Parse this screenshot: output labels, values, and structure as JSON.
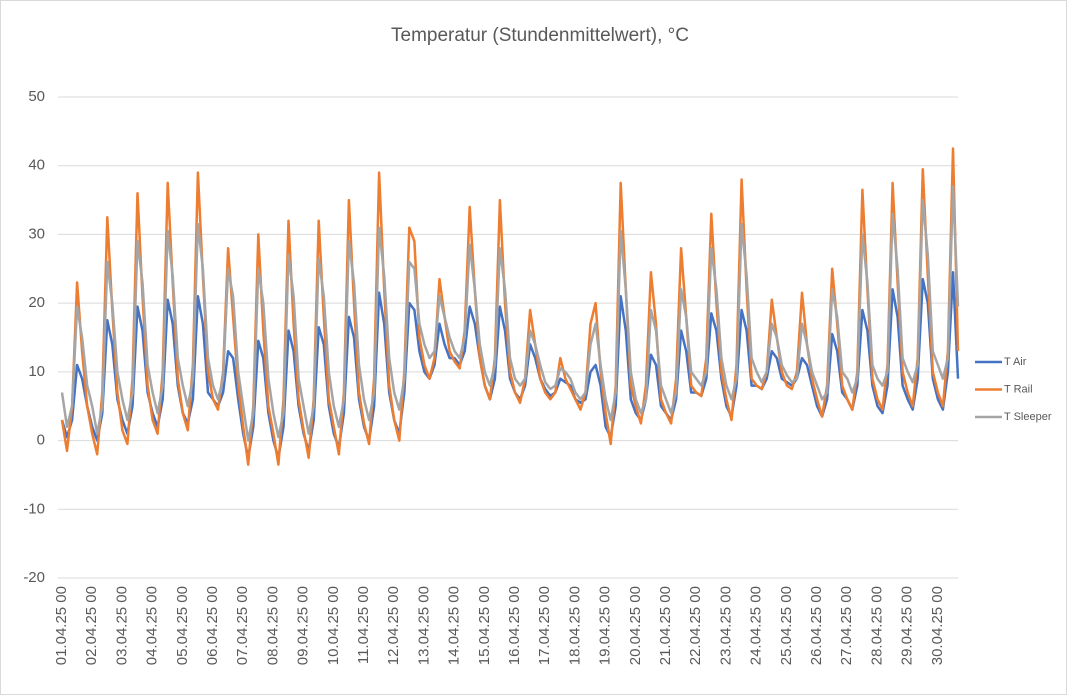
{
  "chart_data": {
    "type": "line",
    "title": "Temperatur (Stundenmittelwert), °C",
    "categories": [
      "01.04.25 00",
      null,
      null,
      null,
      null,
      null,
      "02.04.25 00",
      null,
      null,
      null,
      null,
      null,
      "03.04.25 00",
      null,
      null,
      null,
      null,
      null,
      "04.04.25 00",
      null,
      null,
      null,
      null,
      null,
      "05.04.25 00",
      null,
      null,
      null,
      null,
      null,
      "06.04.25 00",
      null,
      null,
      null,
      null,
      null,
      "07.04.25 00",
      null,
      null,
      null,
      null,
      null,
      "08.04.25 00",
      null,
      null,
      null,
      null,
      null,
      "09.04.25 00",
      null,
      null,
      null,
      null,
      null,
      "10.04.25 00",
      null,
      null,
      null,
      null,
      null,
      "11.04.25 00",
      null,
      null,
      null,
      null,
      null,
      "12.04.25 00",
      null,
      null,
      null,
      null,
      null,
      "13.04.25 00",
      null,
      null,
      null,
      null,
      null,
      "14.04.25 00",
      null,
      null,
      null,
      null,
      null,
      "15.04.25 00",
      null,
      null,
      null,
      null,
      null,
      "16.04.25 00",
      null,
      null,
      null,
      null,
      null,
      "17.04.25 00",
      null,
      null,
      null,
      null,
      null,
      "18.04.25 00",
      null,
      null,
      null,
      null,
      null,
      "19.04.25 00",
      null,
      null,
      null,
      null,
      null,
      "20.04.25 00",
      null,
      null,
      null,
      null,
      null,
      "21.04.25 00",
      null,
      null,
      null,
      null,
      null,
      "22.04.25 00",
      null,
      null,
      null,
      null,
      null,
      "23.04.25 00",
      null,
      null,
      null,
      null,
      null,
      "24.04.25 00",
      null,
      null,
      null,
      null,
      null,
      "25.04.25 00",
      null,
      null,
      null,
      null,
      null,
      "26.04.25 00",
      null,
      null,
      null,
      null,
      null,
      "27.04.25 00",
      null,
      null,
      null,
      null,
      null,
      "28.04.25 00",
      null,
      null,
      null,
      null,
      null,
      "29.04.25 00",
      null,
      null,
      null,
      null,
      null,
      "30.04.25 00",
      null,
      null,
      null,
      null
    ],
    "series": [
      {
        "name": "T Air",
        "color": "#4472c4",
        "values": [
          3,
          0.5,
          3,
          11,
          9,
          5,
          2,
          0,
          4,
          17.5,
          14,
          6,
          3,
          1,
          5,
          19.5,
          16,
          7,
          4,
          2,
          6,
          20.5,
          17,
          8,
          4,
          2.5,
          6,
          21,
          17,
          7,
          6,
          5,
          7,
          13,
          12,
          6,
          1,
          -2.5,
          2,
          14.5,
          12,
          4,
          0,
          -2.5,
          2,
          16,
          13,
          5,
          1,
          -1.5,
          3,
          16.5,
          14,
          5,
          1,
          -1,
          4,
          18,
          15,
          6,
          2,
          0,
          5,
          21.5,
          17,
          7,
          3,
          1,
          7,
          20,
          19,
          13,
          10,
          9,
          11,
          17,
          14,
          12,
          12,
          11,
          13,
          19.5,
          17,
          12,
          8,
          6,
          9,
          19.5,
          16,
          9,
          7,
          6,
          8,
          14,
          12,
          9,
          7.5,
          6.5,
          7,
          9,
          8.5,
          8,
          6,
          5.5,
          6,
          10,
          11,
          8,
          2,
          0.5,
          5,
          21,
          16,
          6,
          4,
          3,
          6,
          12.5,
          11,
          5,
          4,
          3,
          6,
          16,
          13,
          7,
          7,
          6.5,
          9,
          18.5,
          16,
          9,
          5,
          3.5,
          8,
          19,
          16,
          8,
          8,
          7.5,
          9,
          13,
          12,
          9,
          8.5,
          8,
          9,
          12,
          11,
          8,
          5,
          3.5,
          6,
          15.5,
          13,
          7,
          6,
          4.5,
          8,
          19,
          16,
          8,
          5,
          4,
          8,
          22,
          18,
          8,
          6,
          4.5,
          9,
          23.5,
          20,
          9,
          6,
          4.5,
          10,
          24.5,
          9
        ]
      },
      {
        "name": "T Rail",
        "color": "#ed7d31",
        "values": [
          3,
          -1.5,
          5,
          23,
          13,
          5,
          1,
          -2,
          7,
          32.5,
          19,
          7,
          1.5,
          -0.5,
          9,
          36,
          21,
          8,
          3,
          1,
          10,
          37.5,
          23,
          9,
          4,
          1.5,
          11,
          39,
          24,
          10,
          6,
          4.5,
          10,
          28,
          18,
          8,
          2,
          -3.5,
          5,
          30,
          16,
          5,
          1,
          -3.5,
          6,
          32,
          17,
          6,
          1.5,
          -2.5,
          6,
          32,
          18,
          6,
          2,
          -2,
          7,
          35,
          20,
          7,
          2.5,
          -0.5,
          9,
          39,
          22,
          8,
          3,
          0,
          10,
          31,
          29,
          15,
          11,
          9,
          12,
          23.5,
          18,
          13,
          11.5,
          10.5,
          16,
          34,
          22,
          12,
          8,
          6,
          12,
          35,
          20,
          10,
          7,
          5.5,
          9,
          19,
          14,
          9,
          7,
          6,
          7,
          12,
          9,
          7.5,
          6,
          4.5,
          7,
          17,
          20,
          10,
          4,
          -0.5,
          8,
          37.5,
          22,
          8,
          5,
          2.5,
          8,
          24.5,
          17,
          6,
          4,
          2.5,
          9,
          28,
          18,
          8,
          7,
          6.5,
          12,
          33,
          20,
          10,
          6,
          3,
          11,
          38,
          22,
          9,
          8,
          7.5,
          10,
          20.5,
          15,
          10,
          8,
          7.5,
          10,
          21.5,
          14,
          9,
          6,
          3.5,
          8,
          25,
          17,
          8,
          6,
          4.5,
          10,
          36.5,
          22,
          9,
          6,
          4.5,
          11,
          37.5,
          23,
          10,
          7,
          5,
          12,
          39.5,
          24,
          10,
          7,
          5,
          13,
          42.5,
          13
        ]
      },
      {
        "name": "T Sleeper",
        "color": "#a5a5a5",
        "values": [
          7,
          2,
          5,
          19.5,
          15,
          8,
          5,
          1,
          5,
          26,
          20,
          10,
          6,
          3,
          7,
          29,
          23,
          11,
          7,
          4,
          8,
          30.5,
          24,
          12,
          8,
          5,
          9,
          31.5,
          25,
          12,
          8,
          6,
          9,
          25,
          21,
          10,
          5,
          0,
          4,
          25,
          20,
          9,
          4,
          0.5,
          4,
          27,
          21,
          9,
          5,
          1,
          5,
          26.5,
          21,
          10,
          5,
          2,
          6,
          29,
          23,
          11,
          6,
          3,
          7,
          31,
          24,
          12,
          7,
          4.5,
          9,
          26,
          25,
          17,
          14,
          12,
          13,
          21,
          18,
          15,
          13,
          12,
          15,
          28.5,
          22,
          14,
          10,
          8,
          11,
          28,
          22,
          12,
          9,
          8,
          9,
          16,
          14,
          11,
          8.5,
          7.5,
          8,
          10.5,
          10,
          9,
          7,
          6,
          7,
          14,
          17,
          11,
          6,
          3,
          7,
          30.5,
          22,
          10,
          6,
          4,
          6,
          19,
          16,
          8,
          6,
          4,
          7,
          22,
          18,
          10,
          9,
          8,
          10,
          28,
          22,
          12,
          8,
          6,
          9,
          31.5,
          24,
          12,
          10,
          8.5,
          10,
          17,
          15,
          11,
          9.5,
          8.5,
          9,
          17,
          14,
          10,
          8,
          6,
          7,
          22,
          18,
          10,
          9,
          7,
          9,
          30,
          23,
          11,
          9,
          8,
          10,
          33,
          25,
          12,
          10,
          8.5,
          11,
          35,
          27,
          13,
          11,
          9,
          12,
          37,
          19.5
        ]
      }
    ],
    "ylim": [
      -20,
      50
    ],
    "yticks": [
      -20,
      -10,
      0,
      10,
      20,
      30,
      40,
      50
    ],
    "grid": true,
    "legend": "right"
  }
}
